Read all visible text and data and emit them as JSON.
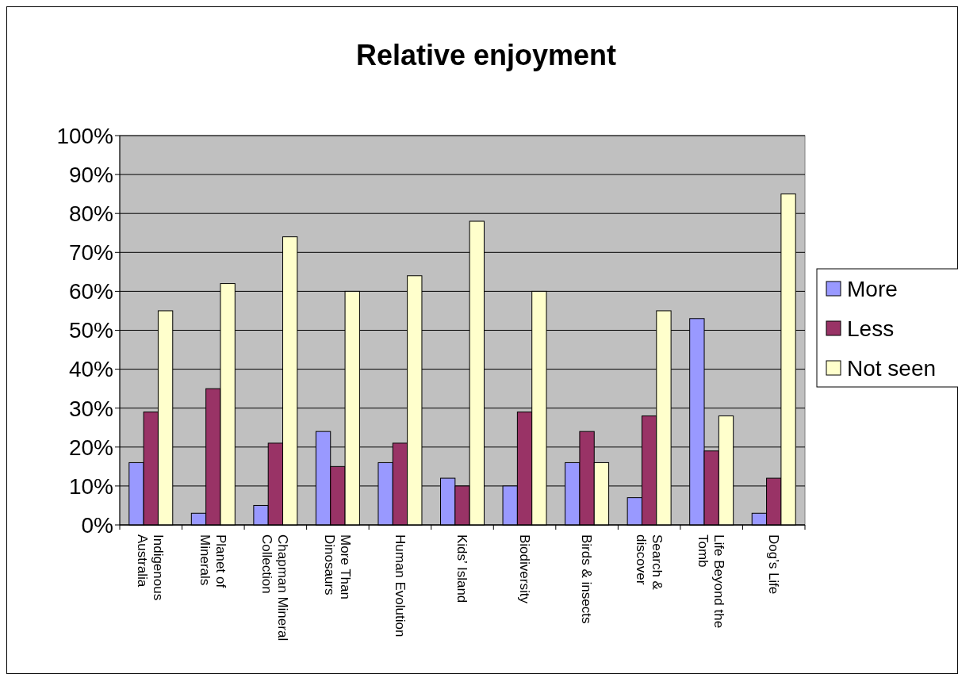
{
  "chart_data": {
    "type": "bar",
    "title": "Relative enjoyment",
    "categories": [
      "Indigenous Australia",
      "Planet of Minerals",
      "Chapman Mineral Collection",
      "More Than Dinosaurs",
      "Human Evolution",
      "Kids’ Island",
      "Biodiversity",
      "Birds & insects",
      "Search & discover",
      "Life Beyond the Tomb",
      "Dog’s Life"
    ],
    "series": [
      {
        "name": "More",
        "color": "#9999ff",
        "values": [
          16,
          3,
          5,
          24,
          16,
          12,
          10,
          16,
          7,
          53,
          3
        ]
      },
      {
        "name": "Less",
        "color": "#993366",
        "values": [
          29,
          35,
          21,
          15,
          21,
          10,
          29,
          24,
          28,
          19,
          12
        ]
      },
      {
        "name": "Not seen",
        "color": "#ffffcc",
        "values": [
          55,
          62,
          74,
          60,
          64,
          78,
          60,
          16,
          55,
          28,
          85
        ]
      }
    ],
    "ylim": [
      0,
      100
    ],
    "yticks": [
      {
        "value": 0,
        "label": "0%"
      },
      {
        "value": 10,
        "label": "10%"
      },
      {
        "value": 20,
        "label": "20%"
      },
      {
        "value": 30,
        "label": "30%"
      },
      {
        "value": 40,
        "label": "40%"
      },
      {
        "value": 50,
        "label": "50%"
      },
      {
        "value": 60,
        "label": "60%"
      },
      {
        "value": 70,
        "label": "70%"
      },
      {
        "value": 80,
        "label": "80%"
      },
      {
        "value": 90,
        "label": "90%"
      },
      {
        "value": 100,
        "label": "100%"
      }
    ],
    "grid": "y",
    "legend": "right"
  }
}
